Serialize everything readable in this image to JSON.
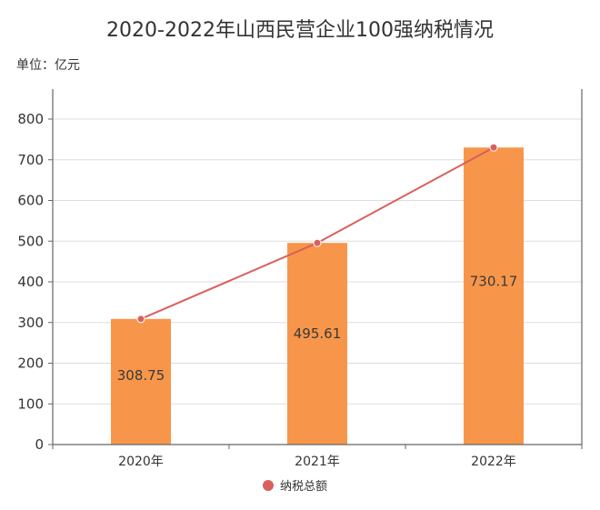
{
  "chart_data": {
    "type": "bar",
    "title": "2020-2022年山西民营企业100强纳税情况",
    "unit_label": "单位：亿元",
    "categories": [
      "2020年",
      "2021年",
      "2022年"
    ],
    "series": [
      {
        "name": "",
        "type": "bar",
        "values": [
          308.75,
          495.61,
          730.17
        ]
      },
      {
        "name": "纳税总额",
        "type": "line",
        "values": [
          308.75,
          495.61,
          730.17
        ]
      }
    ],
    "data_labels": [
      "308.75",
      "495.61",
      "730.17"
    ],
    "yticks": [
      0,
      100,
      200,
      300,
      400,
      500,
      600,
      700,
      800
    ],
    "ylim": [
      0,
      800
    ],
    "grid": true,
    "legend_position": "bottom-center",
    "colors": {
      "bar": "#F7964A",
      "line": "#D9605C",
      "grid": "#dddddd",
      "axis": "#666666"
    }
  }
}
